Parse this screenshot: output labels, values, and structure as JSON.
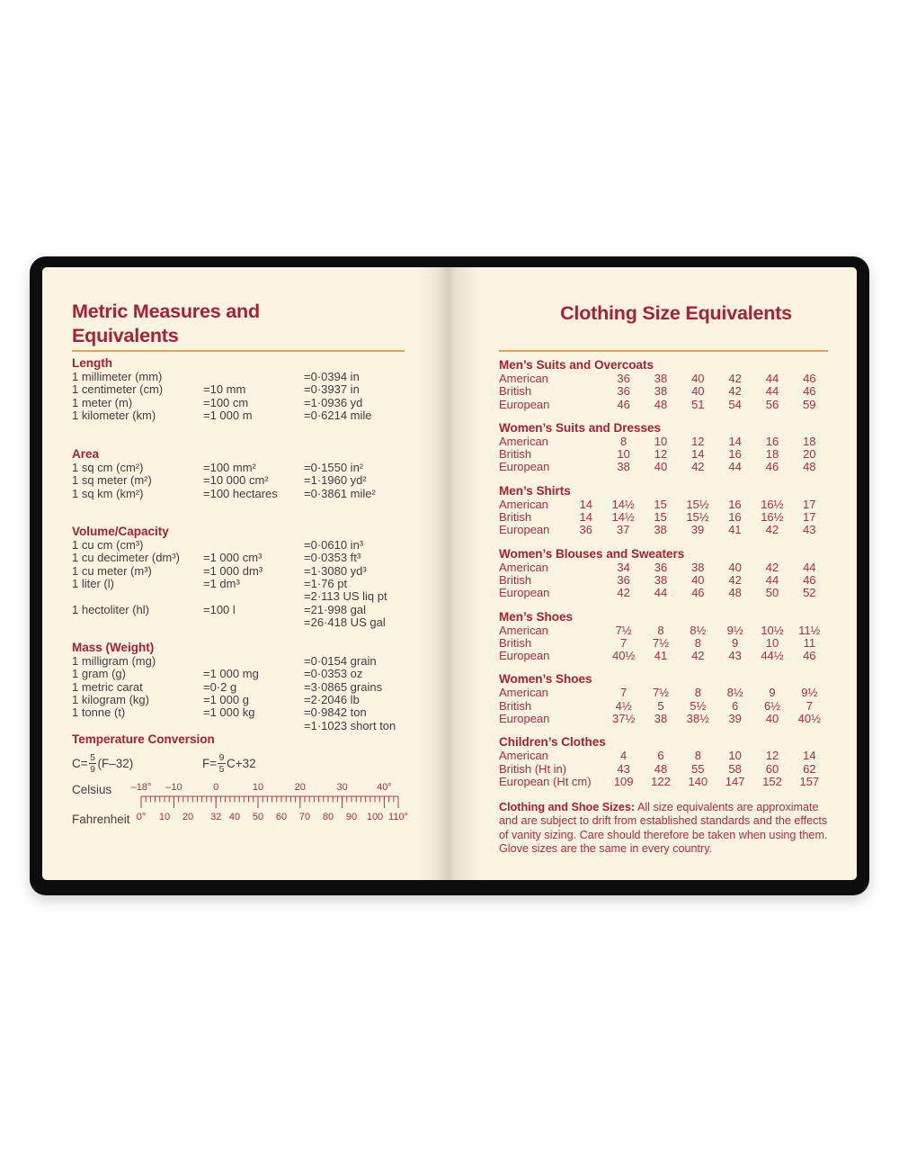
{
  "left_page": {
    "title_lines": [
      "Metric Measures and",
      "Equivalents"
    ],
    "sections": [
      {
        "name": "Length",
        "rows": [
          [
            "1 millimeter (mm)",
            "",
            "=0·0394 in"
          ],
          [
            "1 centimeter (cm)",
            "=10 mm",
            "=0·3937 in"
          ],
          [
            "1 meter (m)",
            "=100 cm",
            "=1·0936 yd"
          ],
          [
            "1 kilometer (km)",
            "=1 000 m",
            "=0·6214 mile"
          ]
        ]
      },
      {
        "name": "Area",
        "rows": [
          [
            "1 sq cm (cm²)",
            "=100 mm²",
            "=0·1550 in²"
          ],
          [
            "1 sq meter (m²)",
            "=10 000 cm²",
            "=1·1960 yd²"
          ],
          [
            "1 sq km (km²)",
            "=100 hectares",
            "=0·3861 mile²"
          ]
        ]
      },
      {
        "name": "Volume/Capacity",
        "rows": [
          [
            "1 cu cm (cm³)",
            "",
            "=0·0610 in³"
          ],
          [
            "1 cu decimeter (dm³)",
            "=1 000 cm³",
            "=0·0353 ft³"
          ],
          [
            "1 cu meter (m³)",
            "=1 000 dm³",
            "=1·3080 yd³"
          ],
          [
            "1 liter (l)",
            "=1 dm³",
            "=1·76 pt"
          ],
          [
            "",
            "",
            "=2·113 US liq pt"
          ],
          [
            "1 hectoliter (hl)",
            "=100 l",
            "=21·998 gal"
          ],
          [
            "",
            "",
            "=26·418 US gal"
          ]
        ]
      },
      {
        "name": "Mass (Weight)",
        "rows": [
          [
            "1 milligram (mg)",
            "",
            "=0·0154 grain"
          ],
          [
            "1 gram (g)",
            "=1 000 mg",
            "=0·0353 oz"
          ],
          [
            "1 metric carat",
            "=0·2 g",
            "=3·0865 grains"
          ],
          [
            "1 kilogram (kg)",
            "=1 000 g",
            "=2·2046 lb"
          ],
          [
            "1 tonne (t)",
            "=1 000 kg",
            "=0·9842 ton"
          ],
          [
            "",
            "",
            "=1·1023 short ton"
          ]
        ]
      }
    ],
    "temperature": {
      "heading": "Temperature Conversion",
      "formula_c": {
        "lhs": "C=",
        "num": "5",
        "den": "9",
        "rhs": "(F–32)"
      },
      "formula_f": {
        "lhs": "F=",
        "num": "9",
        "den": "5",
        "rhs": "C+32"
      },
      "celsius_label": "Celsius",
      "fahrenheit_label": "Fahrenheit",
      "celsius_ticks": [
        [
          "–18°",
          -18
        ],
        [
          "–10",
          -10
        ],
        [
          "0",
          0
        ],
        [
          "10",
          10
        ],
        [
          "20",
          20
        ],
        [
          "30",
          30
        ],
        [
          "40°",
          40
        ]
      ],
      "fahrenheit_ticks": [
        [
          "0°",
          0
        ],
        [
          "10",
          10
        ],
        [
          "20",
          20
        ],
        [
          "32",
          32
        ],
        [
          "40",
          40
        ],
        [
          "50",
          50
        ],
        [
          "60",
          60
        ],
        [
          "70",
          70
        ],
        [
          "80",
          80
        ],
        [
          "90",
          90
        ],
        [
          "100",
          100
        ],
        [
          "110°",
          110
        ]
      ]
    }
  },
  "right_page": {
    "title": "Clothing Size Equivalents",
    "sections": [
      {
        "name": "Men’s Suits and Overcoats",
        "rows": [
          {
            "label": "American",
            "values": [
              "36",
              "38",
              "40",
              "42",
              "44",
              "46"
            ]
          },
          {
            "label": "British",
            "values": [
              "36",
              "38",
              "40",
              "42",
              "44",
              "46"
            ]
          },
          {
            "label": "European",
            "values": [
              "46",
              "48",
              "51",
              "54",
              "56",
              "59"
            ]
          }
        ]
      },
      {
        "name": "Women’s Suits and Dresses",
        "rows": [
          {
            "label": "American",
            "values": [
              "8",
              "10",
              "12",
              "14",
              "16",
              "18"
            ]
          },
          {
            "label": "British",
            "values": [
              "10",
              "12",
              "14",
              "16",
              "18",
              "20"
            ]
          },
          {
            "label": "European",
            "values": [
              "38",
              "40",
              "42",
              "44",
              "46",
              "48"
            ]
          }
        ]
      },
      {
        "name": "Men’s Shirts",
        "rows": [
          {
            "label": "American",
            "values": [
              "14",
              "14½",
              "15",
              "15½",
              "16",
              "16½",
              "17"
            ]
          },
          {
            "label": "British",
            "values": [
              "14",
              "14½",
              "15",
              "15½",
              "16",
              "16½",
              "17"
            ]
          },
          {
            "label": "European",
            "values": [
              "36",
              "37",
              "38",
              "39",
              "41",
              "42",
              "43"
            ]
          }
        ]
      },
      {
        "name": "Women’s Blouses and Sweaters",
        "rows": [
          {
            "label": "American",
            "values": [
              "34",
              "36",
              "38",
              "40",
              "42",
              "44"
            ]
          },
          {
            "label": "British",
            "values": [
              "36",
              "38",
              "40",
              "42",
              "44",
              "46"
            ]
          },
          {
            "label": "European",
            "values": [
              "42",
              "44",
              "46",
              "48",
              "50",
              "52"
            ]
          }
        ]
      },
      {
        "name": "Men’s Shoes",
        "rows": [
          {
            "label": "American",
            "values": [
              "7½",
              "8",
              "8½",
              "9½",
              "10½",
              "11½"
            ]
          },
          {
            "label": "British",
            "values": [
              "7",
              "7½",
              "8",
              "9",
              "10",
              "11"
            ]
          },
          {
            "label": "European",
            "values": [
              "40½",
              "41",
              "42",
              "43",
              "44½",
              "46"
            ]
          }
        ]
      },
      {
        "name": "Women’s Shoes",
        "rows": [
          {
            "label": "American",
            "values": [
              "7",
              "7½",
              "8",
              "8½",
              "9",
              "9½"
            ]
          },
          {
            "label": "British",
            "values": [
              "4½",
              "5",
              "5½",
              "6",
              "6½",
              "7"
            ]
          },
          {
            "label": "European",
            "values": [
              "37½",
              "38",
              "38½",
              "39",
              "40",
              "40½"
            ]
          }
        ]
      },
      {
        "name": "Children’s Clothes",
        "rows": [
          {
            "label": "American",
            "values": [
              "4",
              "6",
              "8",
              "10",
              "12",
              "14"
            ]
          },
          {
            "label": "British (Ht in)",
            "values": [
              "43",
              "48",
              "55",
              "58",
              "60",
              "62"
            ]
          },
          {
            "label": "European (Ht cm)",
            "values": [
              "109",
              "122",
              "140",
              "147",
              "152",
              "157"
            ]
          }
        ]
      }
    ],
    "footnote_bold": "Clothing and Shoe Sizes:",
    "footnote_text": " All size equivalents are approximate and are subject to drift from established standards and the effects of vanity sizing. Care should therefore be taken when using them. Glove sizes are the same in every country."
  },
  "colors": {
    "heading_red": "#a81f36",
    "data_red": "#b02c44",
    "body_ink": "#4a393c",
    "rule_tan": "#d8a55a",
    "paper": "#faf4e0",
    "cover": "#0d0d0d"
  }
}
